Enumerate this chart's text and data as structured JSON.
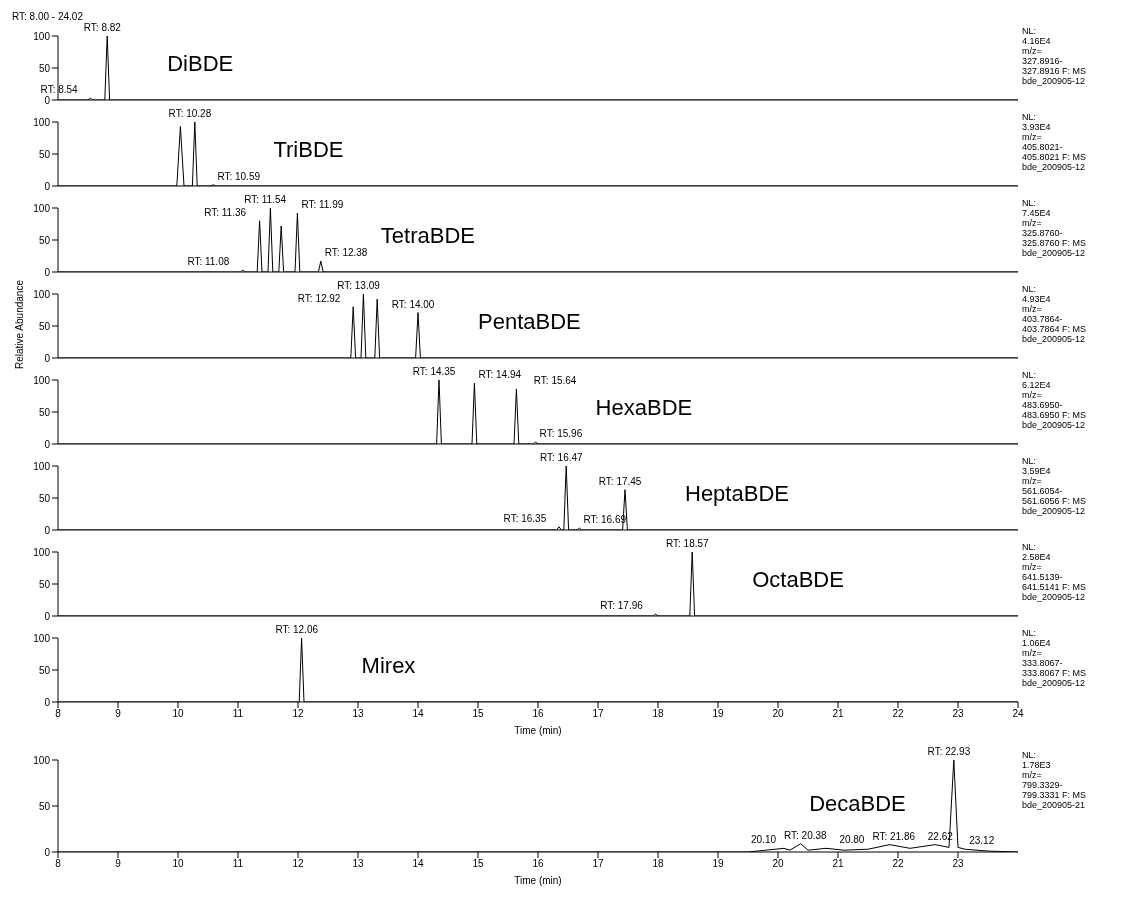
{
  "chart_data": [
    {
      "type": "line",
      "title": "DiBDE",
      "subtitle": "RT: 8.00 - 24.02",
      "marker": "none",
      "tick_labels": "y",
      "xlim": [
        8,
        24
      ],
      "ylim": [
        0,
        100
      ],
      "yticks": [
        0,
        50,
        100
      ],
      "series": [
        {
          "color": "#000000",
          "x": [
            8,
            8.5,
            8.54,
            8.58,
            8.78,
            8.82,
            8.86,
            24
          ],
          "values": [
            0,
            0,
            3,
            0,
            0,
            100,
            0,
            0
          ]
        }
      ],
      "annotations": [
        {
          "text": "RT: 8.82",
          "x": 8.82,
          "y": 100
        },
        {
          "text": "RT: 8.54",
          "x": 8.54,
          "y": 3
        },
        "NL:\n4.16E4\nm/z=\n327.8916-\n327.8916 F:   MS\nbde_200905-12"
      ]
    },
    {
      "type": "line",
      "title": "TriBDE",
      "marker": "none",
      "tick_labels": "y",
      "xlim": [
        8,
        24
      ],
      "ylim": [
        0,
        100
      ],
      "yticks": [
        0,
        50,
        100
      ],
      "series": [
        {
          "color": "#000000",
          "x": [
            8,
            9.98,
            10.04,
            10.1,
            10.24,
            10.28,
            10.32,
            10.55,
            10.59,
            10.63,
            24
          ],
          "values": [
            0,
            0,
            93,
            0,
            0,
            100,
            0,
            0,
            2,
            0,
            0
          ]
        }
      ],
      "annotations": [
        {
          "text": "RT: 10.28",
          "x": 10.28,
          "y": 100
        },
        {
          "text": "RT: 10.59",
          "x": 10.59,
          "y": 2
        },
        "NL:\n3.93E4\nm/z=\n405.8021-\n405.8021 F:   MS\nbde_200905-12"
      ]
    },
    {
      "type": "line",
      "title": "TetraBDE",
      "marker": "none",
      "tick_labels": "y",
      "xlim": [
        8,
        24
      ],
      "ylim": [
        0,
        100
      ],
      "yticks": [
        0,
        50,
        100
      ],
      "series": [
        {
          "color": "#000000",
          "x": [
            8,
            11.04,
            11.08,
            11.12,
            11.32,
            11.36,
            11.4,
            11.5,
            11.54,
            11.58,
            11.68,
            11.72,
            11.76,
            11.95,
            11.99,
            12.03,
            12.34,
            12.38,
            12.42,
            24
          ],
          "values": [
            0,
            0,
            3,
            0,
            0,
            80,
            0,
            0,
            100,
            0,
            0,
            72,
            0,
            0,
            92,
            0,
            0,
            17,
            0,
            0
          ]
        }
      ],
      "annotations": [
        {
          "text": "RT: 11.08",
          "x": 11.08,
          "y": 3
        },
        {
          "text": "RT: 11.36",
          "x": 11.36,
          "y": 80
        },
        {
          "text": "RT: 11.54",
          "x": 11.54,
          "y": 100
        },
        {
          "text": "RT: 11.99",
          "x": 11.99,
          "y": 92
        },
        {
          "text": "RT: 12.38",
          "x": 12.38,
          "y": 17
        },
        "NL:\n7.45E4\nm/z=\n325.8760-\n325.8760 F:   MS\nbde_200905-12"
      ]
    },
    {
      "type": "line",
      "title": "PentaBDE",
      "ylabel": "Relative Abundance",
      "marker": "none",
      "tick_labels": "y",
      "xlim": [
        8,
        24
      ],
      "ylim": [
        0,
        100
      ],
      "yticks": [
        0,
        50,
        100
      ],
      "series": [
        {
          "color": "#000000",
          "x": [
            8,
            12.88,
            12.92,
            12.96,
            13.05,
            13.09,
            13.13,
            13.28,
            13.32,
            13.36,
            13.96,
            14.0,
            14.04,
            24
          ],
          "values": [
            0,
            0,
            80,
            0,
            0,
            100,
            0,
            0,
            92,
            0,
            0,
            71,
            0,
            0
          ]
        }
      ],
      "annotations": [
        {
          "text": "RT: 12.92",
          "x": 12.92,
          "y": 80
        },
        {
          "text": "RT: 13.09",
          "x": 13.09,
          "y": 100
        },
        {
          "text": "RT: 14.00",
          "x": 14.0,
          "y": 71
        },
        "NL:\n4.93E4\nm/z=\n403.7864-\n403.7864 F:   MS\nbde_200905-12"
      ]
    },
    {
      "type": "line",
      "title": "HexaBDE",
      "marker": "none",
      "tick_labels": "y",
      "xlim": [
        8,
        24
      ],
      "ylim": [
        0,
        100
      ],
      "yticks": [
        0,
        50,
        100
      ],
      "series": [
        {
          "color": "#000000",
          "x": [
            8,
            14.31,
            14.35,
            14.39,
            14.9,
            14.94,
            14.98,
            15.6,
            15.64,
            15.68,
            15.92,
            15.96,
            16.0,
            24
          ],
          "values": [
            0,
            0,
            100,
            0,
            0,
            95,
            0,
            0,
            86,
            0,
            0,
            3,
            0,
            0
          ]
        }
      ],
      "annotations": [
        {
          "text": "RT: 14.35",
          "x": 14.35,
          "y": 100
        },
        {
          "text": "RT: 14.94",
          "x": 14.94,
          "y": 95
        },
        {
          "text": "RT: 15.64",
          "x": 15.64,
          "y": 86
        },
        {
          "text": "RT: 15.96",
          "x": 15.96,
          "y": 3
        },
        "NL:\n6.12E4\nm/z=\n483.6950-\n483.6950 F:   MS\nbde_200905-12"
      ]
    },
    {
      "type": "line",
      "title": "HeptaBDE",
      "marker": "none",
      "tick_labels": "y",
      "xlim": [
        8,
        24
      ],
      "ylim": [
        0,
        100
      ],
      "yticks": [
        0,
        50,
        100
      ],
      "series": [
        {
          "color": "#000000",
          "x": [
            8,
            16.31,
            16.35,
            16.39,
            16.43,
            16.47,
            16.51,
            16.65,
            16.69,
            16.73,
            17.41,
            17.45,
            17.49,
            24
          ],
          "values": [
            0,
            0,
            5,
            0,
            0,
            100,
            0,
            0,
            3,
            0,
            0,
            63,
            0,
            0
          ]
        }
      ],
      "annotations": [
        {
          "text": "RT: 16.35",
          "x": 16.35,
          "y": 5
        },
        {
          "text": "RT: 16.47",
          "x": 16.47,
          "y": 100
        },
        {
          "text": "RT: 16.69",
          "x": 16.69,
          "y": 3
        },
        {
          "text": "RT: 17.45",
          "x": 17.45,
          "y": 63
        },
        "NL:\n3.59E4\nm/z=\n561.6054-\n561.6056 F:   MS\nbde_200905-12"
      ]
    },
    {
      "type": "line",
      "title": "OctaBDE",
      "marker": "none",
      "tick_labels": "y",
      "xlim": [
        8,
        24
      ],
      "ylim": [
        0,
        100
      ],
      "yticks": [
        0,
        50,
        100
      ],
      "series": [
        {
          "color": "#000000",
          "x": [
            8,
            17.92,
            17.96,
            18.0,
            18.53,
            18.57,
            18.61,
            24
          ],
          "values": [
            0,
            0,
            3,
            0,
            0,
            100,
            0,
            0
          ]
        }
      ],
      "annotations": [
        {
          "text": "RT: 17.96",
          "x": 17.96,
          "y": 3
        },
        {
          "text": "RT: 18.57",
          "x": 18.57,
          "y": 100
        },
        "NL:\n2.58E4\nm/z=\n641.5139-\n641.5141 F:   MS\nbde_200905-12"
      ]
    },
    {
      "type": "line",
      "title": "Mirex",
      "xlabel": "Time (min)",
      "marker": "none",
      "xlim": [
        8,
        24
      ],
      "xticks": [
        8,
        9,
        10,
        11,
        12,
        13,
        14,
        15,
        16,
        17,
        18,
        19,
        20,
        21,
        22,
        23,
        24
      ],
      "ylim": [
        0,
        100
      ],
      "yticks": [
        0,
        50,
        100
      ],
      "series": [
        {
          "color": "#000000",
          "x": [
            8,
            12.02,
            12.06,
            12.1,
            24
          ],
          "values": [
            0,
            0,
            100,
            0,
            0
          ]
        }
      ],
      "annotations": [
        {
          "text": "RT: 12.06",
          "x": 12.06,
          "y": 100
        },
        "NL:\n1.06E4\nm/z=\n333.8067-\n333.8067 F:   MS\nbde_200905-12"
      ]
    },
    {
      "type": "line",
      "title": "DecaBDE",
      "xlabel": "Time (min)",
      "marker": "none",
      "xlim": [
        8,
        24
      ],
      "xticks": [
        8,
        9,
        10,
        11,
        12,
        13,
        14,
        15,
        16,
        17,
        18,
        19,
        20,
        21,
        22,
        23
      ],
      "ylim": [
        0,
        100
      ],
      "yticks": [
        0,
        50,
        100
      ],
      "series": [
        {
          "color": "#000000",
          "x": [
            8,
            19.5,
            19.8,
            20.1,
            20.2,
            20.38,
            20.5,
            20.8,
            21.1,
            21.5,
            21.86,
            22.2,
            22.62,
            22.85,
            22.93,
            23.0,
            23.12,
            23.5,
            24
          ],
          "values": [
            0,
            0,
            2,
            4,
            2,
            9,
            2,
            4,
            2,
            3,
            8,
            4,
            8,
            5,
            100,
            5,
            3,
            1,
            0
          ]
        }
      ],
      "annotations": [
        {
          "text": "20.10",
          "x": 20.1,
          "y": 4
        },
        {
          "text": "RT: 20.38",
          "x": 20.38,
          "y": 9
        },
        {
          "text": "20.80",
          "x": 20.8,
          "y": 4
        },
        {
          "text": "RT: 21.86",
          "x": 21.86,
          "y": 8
        },
        {
          "text": "22.62",
          "x": 22.62,
          "y": 8
        },
        {
          "text": "RT: 22.93",
          "x": 22.93,
          "y": 100
        },
        {
          "text": "23.12",
          "x": 23.12,
          "y": 3
        },
        "NL:\n1.78E3\nm/z=\n799.3329-\n799.3331 F:   MS\nbde_200905-21"
      ]
    }
  ]
}
